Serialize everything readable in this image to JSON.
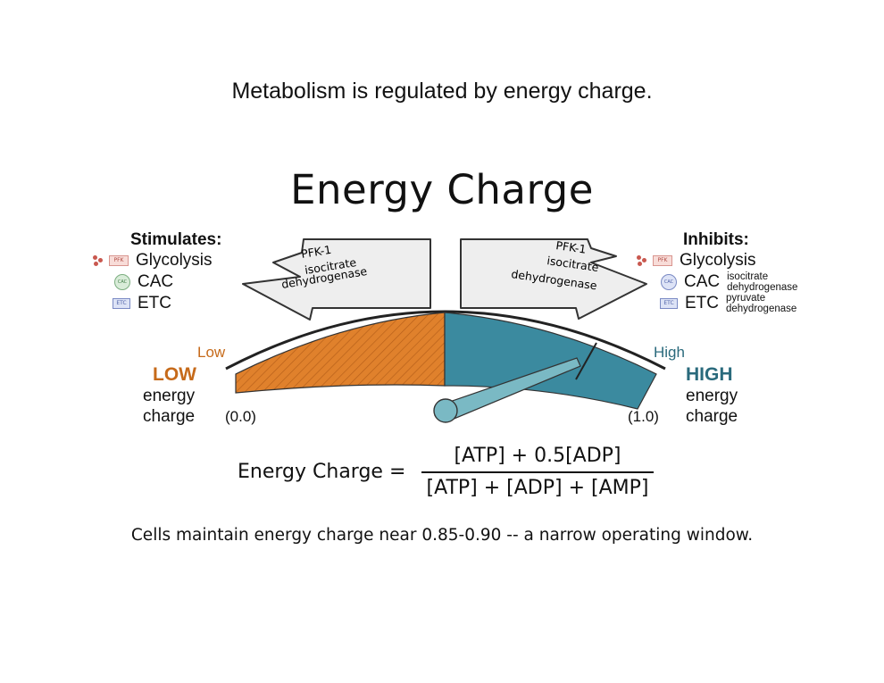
{
  "slide_title": "Metabolism is regulated by energy charge.",
  "diagram_title": "Energy Charge",
  "stimulates": {
    "heading": "Stimulates:",
    "items": [
      {
        "label": "Glycolysis",
        "icon": "PFK",
        "icon_name": "pfk-icon"
      },
      {
        "label": "CAC",
        "icon": "CAC",
        "icon_name": "cac-cycle-icon"
      },
      {
        "label": "ETC",
        "icon": "ETC",
        "icon_name": "etc-arrow-icon"
      }
    ]
  },
  "inhibits": {
    "heading": "Inhibits:",
    "items": [
      {
        "label": "Glycolysis",
        "sub": "",
        "icon": "PFK",
        "icon_name": "pfk-icon"
      },
      {
        "label": "CAC",
        "sub": "isocitrate dehydrogenase",
        "icon": "CAC",
        "icon_name": "cac-cycle-icon"
      },
      {
        "label": "ETC",
        "sub": "pyruvate dehydrogenase",
        "icon": "ETC",
        "icon_name": "etc-arrow-icon"
      }
    ]
  },
  "left_arrow": {
    "line1": "PFK-1",
    "line2": "isocitrate",
    "line3": "dehydrogenase"
  },
  "right_arrow": {
    "line1": "PFK-1",
    "line2": "isocitrate",
    "line3": "dehydrogenase"
  },
  "gauge": {
    "low_word": "Low",
    "high_word": "High",
    "low_big": "LOW",
    "high_big": "HIGH",
    "energy": "energy",
    "charge": "charge",
    "min_label": "(0.0)",
    "max_label": "(1.0)",
    "needle_value": 0.87,
    "min": 0.0,
    "max": 1.0,
    "window_start": 0.85,
    "colors": {
      "low": "#e0812c",
      "high": "#3b8a9f",
      "low_text": "#c66a1a",
      "high_text": "#2a6a7c"
    }
  },
  "formula": {
    "lhs": "Energy Charge =",
    "numerator": "[ATP] + 0.5[ADP]",
    "denominator": "[ATP] + [ADP] + [AMP]"
  },
  "footer": "Cells maintain energy charge near 0.85-0.90 -- a narrow operating window."
}
